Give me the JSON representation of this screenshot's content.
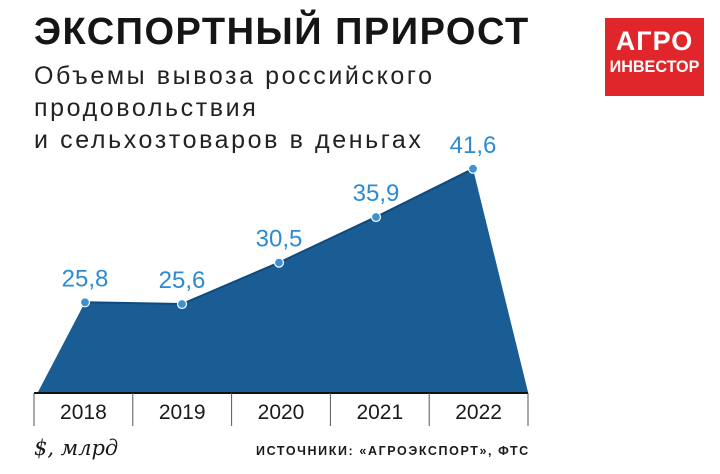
{
  "header": {
    "title": "ЭКСПОРТНЫЙ ПРИРОСТ",
    "subtitle_lines": [
      "Объемы вывоза российского",
      "продовольствия",
      "и сельхозтоваров в деньгах"
    ]
  },
  "logo": {
    "line1": "АГРО",
    "line2": "ИНВЕСТОР",
    "color": "#e0262b"
  },
  "colors": {
    "area_fill": "#1a5d94",
    "area_edge": "#0f4a7c",
    "point": "#3b93d6",
    "value_label": "#2e8bd1",
    "axis": "#111111"
  },
  "chart_data": {
    "type": "area",
    "title": "ЭКСПОРТНЫЙ ПРИРОСТ",
    "ylabel": "$, млрд",
    "categories": [
      "2018",
      "2019",
      "2020",
      "2021",
      "2022"
    ],
    "values": [
      25.8,
      25.6,
      30.5,
      35.9,
      41.6
    ],
    "value_labels": [
      "25,8",
      "25,6",
      "30,5",
      "35,9",
      "41,6"
    ],
    "grid": false,
    "legend": "none"
  },
  "footer": {
    "unit": "$, млрд",
    "source": "ИСТОЧНИКИ: «АГРОЭКСПОРТ», ФТС"
  }
}
